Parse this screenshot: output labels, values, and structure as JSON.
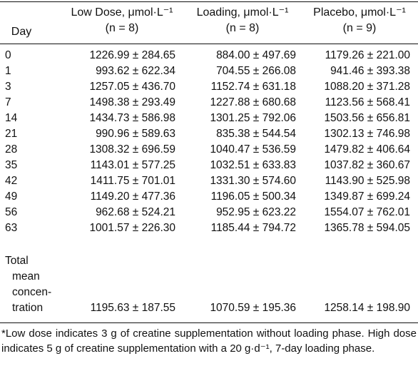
{
  "table": {
    "headers": {
      "day": "Day",
      "low_dose": "Low Dose, μmol·L⁻¹",
      "low_dose_n": "(n = 8)",
      "loading": "Loading, μmol·L⁻¹",
      "loading_n": "(n = 8)",
      "placebo": "Placebo, μmol·L⁻¹",
      "placebo_n": "(n = 9)"
    },
    "rows": [
      {
        "day": "0",
        "low_dose": "1226.99 ± 284.65",
        "loading": "884.00 ± 497.69",
        "placebo": "1179.26 ± 221.00"
      },
      {
        "day": "1",
        "low_dose": "993.62 ± 622.34",
        "loading": "704.55 ± 266.08",
        "placebo": "941.46 ± 393.38"
      },
      {
        "day": "3",
        "low_dose": "1257.05 ± 436.70",
        "loading": "1152.74 ± 631.18",
        "placebo": "1088.20 ± 371.28"
      },
      {
        "day": "7",
        "low_dose": "1498.38 ± 293.49",
        "loading": "1227.88 ± 680.68",
        "placebo": "1123.56 ± 568.41"
      },
      {
        "day": "14",
        "low_dose": "1434.73 ± 586.98",
        "loading": "1301.25 ± 792.06",
        "placebo": "1503.56 ± 656.81"
      },
      {
        "day": "21",
        "low_dose": "990.96 ± 589.63",
        "loading": "835.38 ± 544.54",
        "placebo": "1302.13 ± 746.98"
      },
      {
        "day": "28",
        "low_dose": "1308.32 ± 696.59",
        "loading": "1040.47 ± 536.59",
        "placebo": "1479.82 ± 406.64"
      },
      {
        "day": "35",
        "low_dose": "1143.01 ± 577.25",
        "loading": "1032.51 ± 633.83",
        "placebo": "1037.82 ± 360.67"
      },
      {
        "day": "42",
        "low_dose": "1411.75 ± 701.01",
        "loading": "1331.30 ± 574.60",
        "placebo": "1143.90 ± 525.98"
      },
      {
        "day": "49",
        "low_dose": "1149.20 ± 477.36",
        "loading": "1196.05 ± 500.34",
        "placebo": "1349.87 ± 699.24"
      },
      {
        "day": "56",
        "low_dose": "962.68 ± 524.21",
        "loading": "952.95 ± 623.22",
        "placebo": "1554.07 ± 762.01"
      },
      {
        "day": "63",
        "low_dose": "1001.57 ± 226.30",
        "loading": "1185.44 ± 794.72",
        "placebo": "1365.78 ± 594.05"
      }
    ],
    "total": {
      "label_line1": "Total",
      "label_line2": "mean",
      "label_line3": "concen-",
      "label_line4": "tration",
      "low_dose": "1195.63 ± 187.55",
      "loading": "1070.59 ± 195.36",
      "placebo": "1258.14 ± 198.90"
    }
  },
  "footnote": "*Low dose indicates 3 g of creatine supplementation without loading phase. High dose indicates 5 g of creatine supplementation with a 20 g·d⁻¹, 7-day loading phase."
}
